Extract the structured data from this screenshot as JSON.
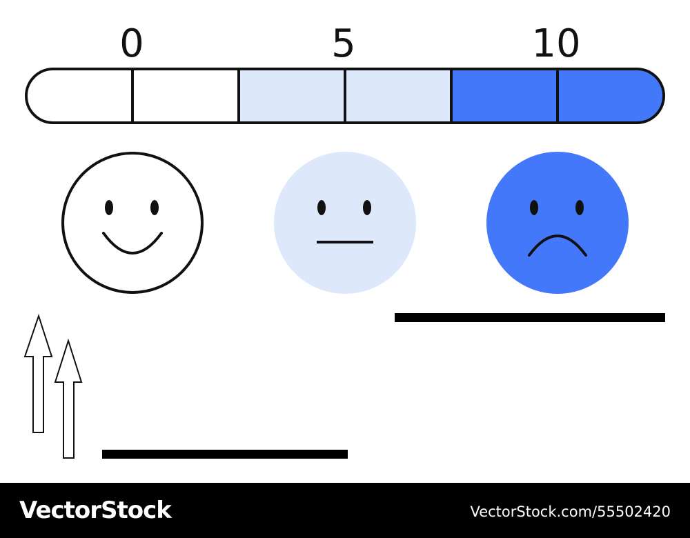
{
  "scale": {
    "tick_labels": [
      "0",
      "5",
      "10"
    ],
    "segment_colors": [
      "#ffffff",
      "#ffffff",
      "#dde8fb",
      "#dde8fb",
      "#4478fb",
      "#4478fb"
    ],
    "outline_color": "#111111"
  },
  "faces": [
    {
      "mood": "happy",
      "fill": "#ffffff",
      "icon": "smiley-face-icon"
    },
    {
      "mood": "neutral",
      "fill": "#dde8fb",
      "icon": "neutral-face-icon"
    },
    {
      "mood": "sad",
      "fill": "#4478fb",
      "icon": "sad-face-icon"
    }
  ],
  "decorations": {
    "arrow_icon": "up-arrow-outline-icon",
    "bar_color": "#000000"
  },
  "footer": {
    "brand": "VectorStock",
    "image_id": "VectorStock.com/55502420"
  }
}
